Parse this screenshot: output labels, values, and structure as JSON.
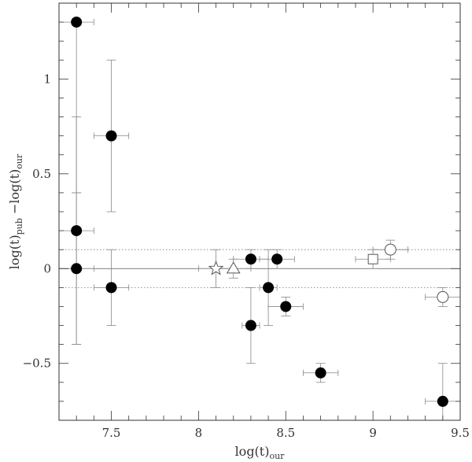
{
  "chart_data": {
    "type": "scatter",
    "title": "",
    "xlabel": {
      "base": "log(t)",
      "sub": "our"
    },
    "ylabel": {
      "base": "log(t)",
      "sub1": "pub",
      "mid": " −log(t)",
      "sub2": "our"
    },
    "xlim": [
      7.2,
      9.5
    ],
    "ylim": [
      -0.8,
      1.4
    ],
    "x_ticks": [
      {
        "value": 7.5,
        "label": "7.5"
      },
      {
        "value": 8,
        "label": "8"
      },
      {
        "value": 8.5,
        "label": "8.5"
      },
      {
        "value": 9,
        "label": "9"
      },
      {
        "value": 9.5,
        "label": "9.5"
      }
    ],
    "y_ticks": [
      {
        "value": -0.5,
        "label": "−0.5"
      },
      {
        "value": 0,
        "label": "0"
      },
      {
        "value": 0.5,
        "label": "0.5"
      },
      {
        "value": 1,
        "label": "1"
      }
    ],
    "x_minor_step": 0.1,
    "y_minor_step": 0.1,
    "reference_lines": [
      {
        "y": 0,
        "style": "solid"
      },
      {
        "y": 0.1,
        "style": "dotted"
      },
      {
        "y": -0.1,
        "style": "dotted"
      }
    ],
    "grid": false,
    "points": [
      {
        "x": 7.3,
        "y": 1.3,
        "xerr": 0.1,
        "yerr_low": 0.9,
        "yerr_high": 0.0,
        "marker": "filled-circle"
      },
      {
        "x": 7.3,
        "y": 0.2,
        "xerr": 0.1,
        "yerr_low": 0.6,
        "yerr_high": 0.6,
        "marker": "filled-circle"
      },
      {
        "x": 7.3,
        "y": 0.0,
        "xerr": 0.1,
        "yerr_low": 0.4,
        "yerr_high": 0.4,
        "marker": "filled-circle"
      },
      {
        "x": 7.5,
        "y": 0.7,
        "xerr": 0.1,
        "yerr_low": 0.4,
        "yerr_high": 0.4,
        "marker": "filled-circle"
      },
      {
        "x": 7.5,
        "y": -0.1,
        "xerr": 0.1,
        "yerr_low": 0.2,
        "yerr_high": 0.2,
        "marker": "filled-circle"
      },
      {
        "x": 8.1,
        "y": 0.0,
        "xerr": 0.1,
        "yerr_low": 0.1,
        "yerr_high": 0.1,
        "marker": "open-star"
      },
      {
        "x": 8.2,
        "y": 0.0,
        "xerr": 0.1,
        "yerr_low": 0.05,
        "yerr_high": 0.05,
        "marker": "open-triangle"
      },
      {
        "x": 8.3,
        "y": 0.05,
        "xerr": 0.1,
        "yerr_low": 0.05,
        "yerr_high": 0.05,
        "marker": "filled-circle"
      },
      {
        "x": 8.3,
        "y": -0.3,
        "xerr": 0.05,
        "yerr_low": 0.2,
        "yerr_high": 0.2,
        "marker": "filled-circle"
      },
      {
        "x": 8.4,
        "y": -0.1,
        "xerr": 0.05,
        "yerr_low": 0.2,
        "yerr_high": 0.2,
        "marker": "filled-circle"
      },
      {
        "x": 8.45,
        "y": 0.05,
        "xerr": 0.1,
        "yerr_low": 0.05,
        "yerr_high": 0.05,
        "marker": "filled-circle"
      },
      {
        "x": 8.5,
        "y": -0.2,
        "xerr": 0.1,
        "yerr_low": 0.05,
        "yerr_high": 0.05,
        "marker": "filled-circle"
      },
      {
        "x": 8.7,
        "y": -0.55,
        "xerr": 0.1,
        "yerr_low": 0.05,
        "yerr_high": 0.05,
        "marker": "filled-circle"
      },
      {
        "x": 9.0,
        "y": 0.05,
        "xerr": 0.1,
        "yerr_low": 0.05,
        "yerr_high": 0.05,
        "marker": "open-square"
      },
      {
        "x": 9.1,
        "y": 0.1,
        "xerr": 0.1,
        "yerr_low": 0.05,
        "yerr_high": 0.05,
        "marker": "open-circle"
      },
      {
        "x": 9.4,
        "y": -0.15,
        "xerr": 0.1,
        "yerr_low": 0.05,
        "yerr_high": 0.05,
        "marker": "open-circle"
      },
      {
        "x": 9.4,
        "y": -0.7,
        "xerr": 0.1,
        "yerr_low": 0.1,
        "yerr_high": 0.2,
        "marker": "filled-circle"
      }
    ]
  }
}
